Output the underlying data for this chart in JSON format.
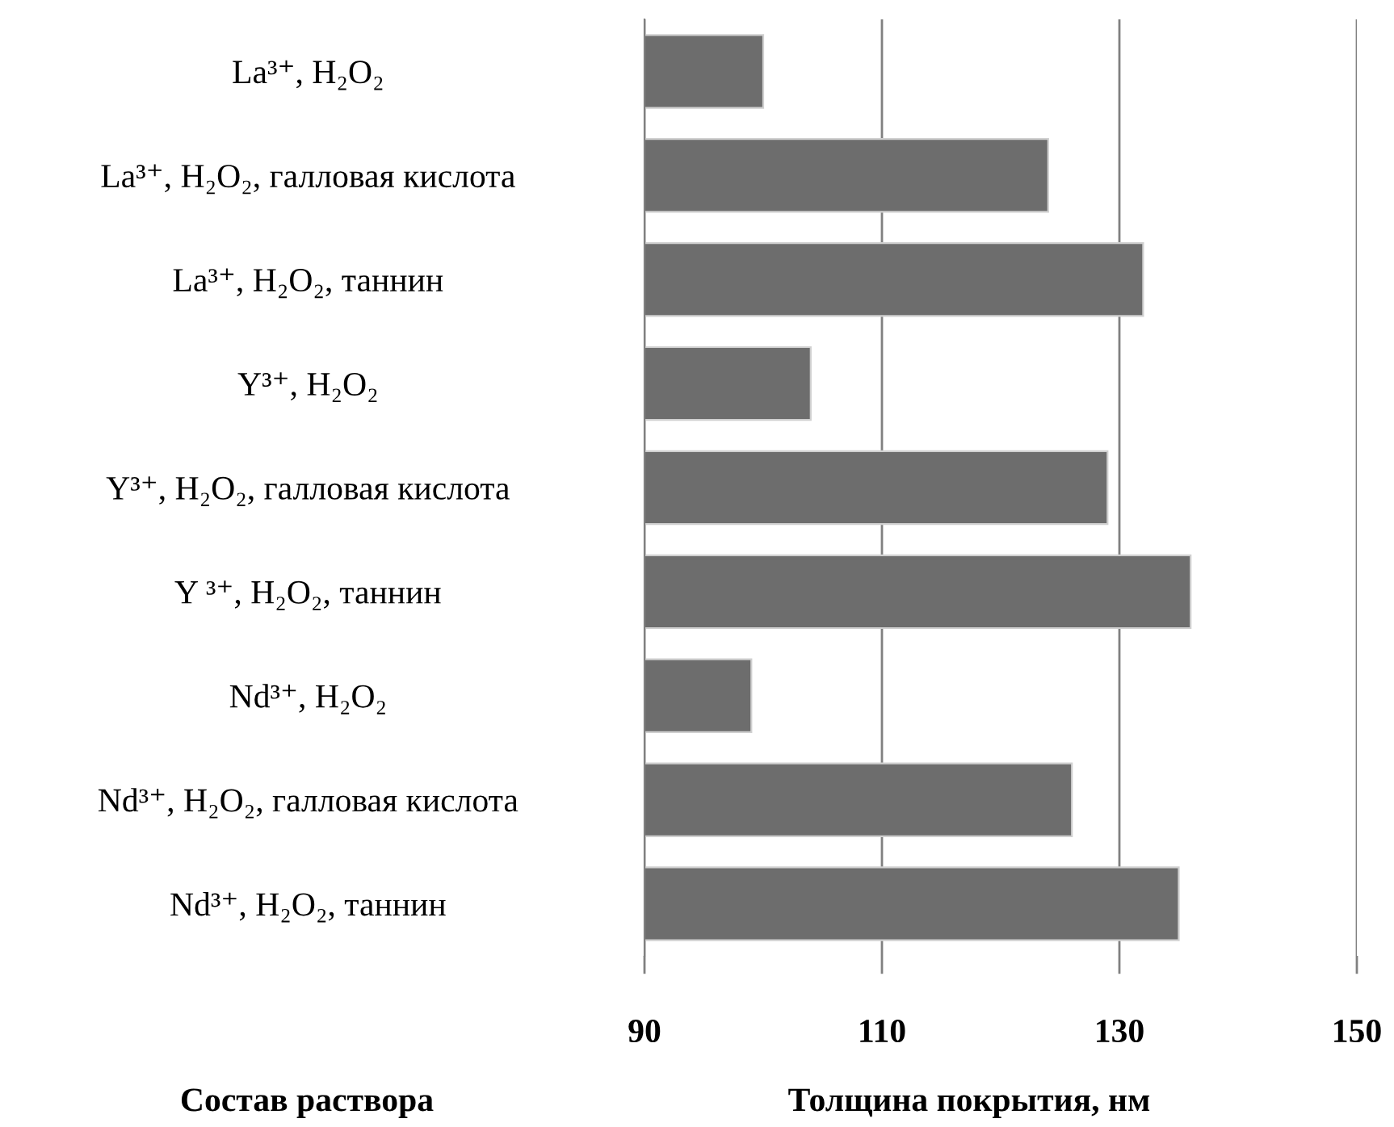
{
  "chart_data": {
    "type": "bar",
    "orientation": "horizontal",
    "xlabel": "Толщина покрытия, нм",
    "annotations": [
      "Состав раствора"
    ],
    "categories": [
      "La³⁺, H₂O₂",
      "La³⁺, H₂O₂, галловая кислота",
      "La³⁺, H₂O₂, таннин",
      "Y³⁺, H₂O₂",
      "Y³⁺, H₂O₂, галловая кислота",
      "Y ³⁺, H₂O₂, таннин",
      "Nd³⁺, H₂O₂",
      "Nd³⁺, H₂O₂, галловая кислота",
      "Nd³⁺, H₂O₂, таннин"
    ],
    "values": [
      100,
      124,
      132,
      104,
      129,
      136,
      99,
      126,
      135
    ],
    "color": "#6d6d6d",
    "xlim": [
      90,
      150
    ],
    "xticks": [
      90,
      110,
      130,
      150
    ],
    "grid": "x"
  }
}
